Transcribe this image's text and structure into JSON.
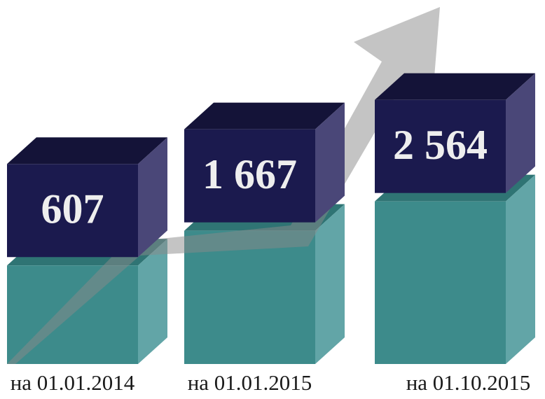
{
  "chart_data": {
    "type": "bar3d",
    "categories": [
      "на 01.01.2014",
      "на 01.01.2015",
      "на 01.10.2015"
    ],
    "values": [
      607,
      1667,
      2564
    ],
    "value_labels": [
      "607",
      "1 667",
      "2 564"
    ],
    "color": "#3d8b8b",
    "label_box_color": "#1b1a4e",
    "ylim": [
      -2400,
      2600
    ]
  }
}
